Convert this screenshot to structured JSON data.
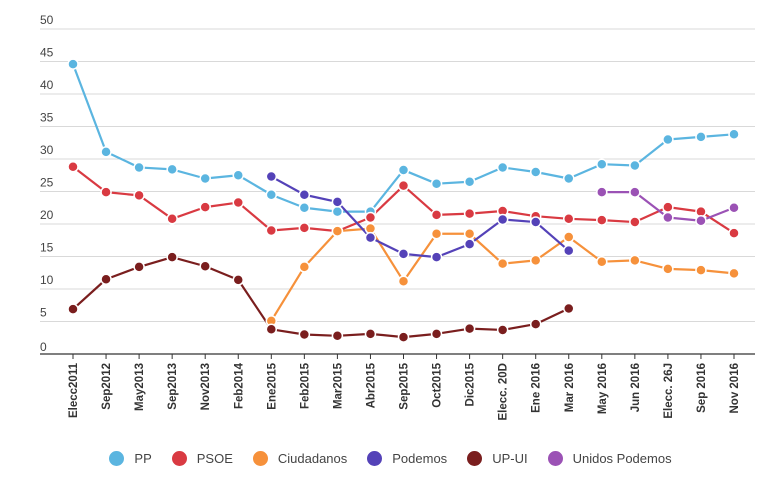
{
  "chart_data": {
    "type": "line",
    "title": "",
    "xlabel": "",
    "ylabel": "",
    "ylim": [
      0,
      50
    ],
    "yticks": [
      "0",
      "5",
      "10",
      "15",
      "20",
      "25",
      "30",
      "35",
      "40",
      "45",
      "50"
    ],
    "grid": true,
    "legend_position": "bottom",
    "categories": [
      "Elecc2011",
      "Sep2012",
      "May2013",
      "Sep2013",
      "Nov2013",
      "Feb2014",
      "Ene2015",
      "Feb2015",
      "Mar2015",
      "Abr2015",
      "Sep2015",
      "Oct2015",
      "Dic2015",
      "Elecc. 20D",
      "Ene 2016",
      "Mar 2016",
      "May 2016",
      "Jun 2016",
      "Elecc. 26J",
      "Sep 2016",
      "Nov 2016"
    ],
    "series": [
      {
        "name": "PP",
        "color": "#5bb5e0",
        "values": [
          44.6,
          31.1,
          28.7,
          28.4,
          27.0,
          27.5,
          24.5,
          22.5,
          21.9,
          21.9,
          28.3,
          26.2,
          26.5,
          28.7,
          28.0,
          27.0,
          29.2,
          29.0,
          33.0,
          33.4,
          33.8
        ]
      },
      {
        "name": "PSOE",
        "color": "#d93a42",
        "values": [
          28.8,
          24.9,
          24.4,
          20.8,
          22.6,
          23.3,
          19.0,
          19.4,
          18.9,
          21.0,
          25.9,
          21.4,
          21.6,
          22.0,
          21.2,
          20.8,
          20.6,
          20.3,
          22.6,
          21.9,
          18.6
        ]
      },
      {
        "name": "Ciudadanos",
        "color": "#f6913b",
        "values": [
          null,
          null,
          null,
          null,
          null,
          null,
          5.1,
          13.4,
          18.9,
          19.3,
          11.2,
          18.5,
          18.5,
          13.9,
          14.4,
          18.0,
          14.2,
          14.4,
          13.1,
          12.9,
          12.4
        ]
      },
      {
        "name": "Podemos",
        "color": "#5442b8",
        "values": [
          null,
          null,
          null,
          null,
          null,
          null,
          27.3,
          24.5,
          23.4,
          17.9,
          15.4,
          14.9,
          16.9,
          20.7,
          20.3,
          15.9,
          null,
          null,
          null,
          null,
          null
        ]
      },
      {
        "name": "UP-UI",
        "color": "#7a1e1e",
        "values": [
          6.9,
          11.5,
          13.4,
          14.9,
          13.5,
          11.4,
          3.8,
          3.0,
          2.8,
          3.1,
          2.6,
          3.1,
          3.9,
          3.7,
          4.6,
          7.0,
          null,
          null,
          null,
          null,
          null
        ]
      },
      {
        "name": "Unidos Podemos",
        "color": "#9b52b5",
        "values": [
          null,
          null,
          null,
          null,
          null,
          null,
          null,
          null,
          null,
          null,
          null,
          null,
          null,
          null,
          null,
          null,
          24.9,
          24.9,
          21.0,
          20.5,
          22.5
        ]
      }
    ]
  }
}
